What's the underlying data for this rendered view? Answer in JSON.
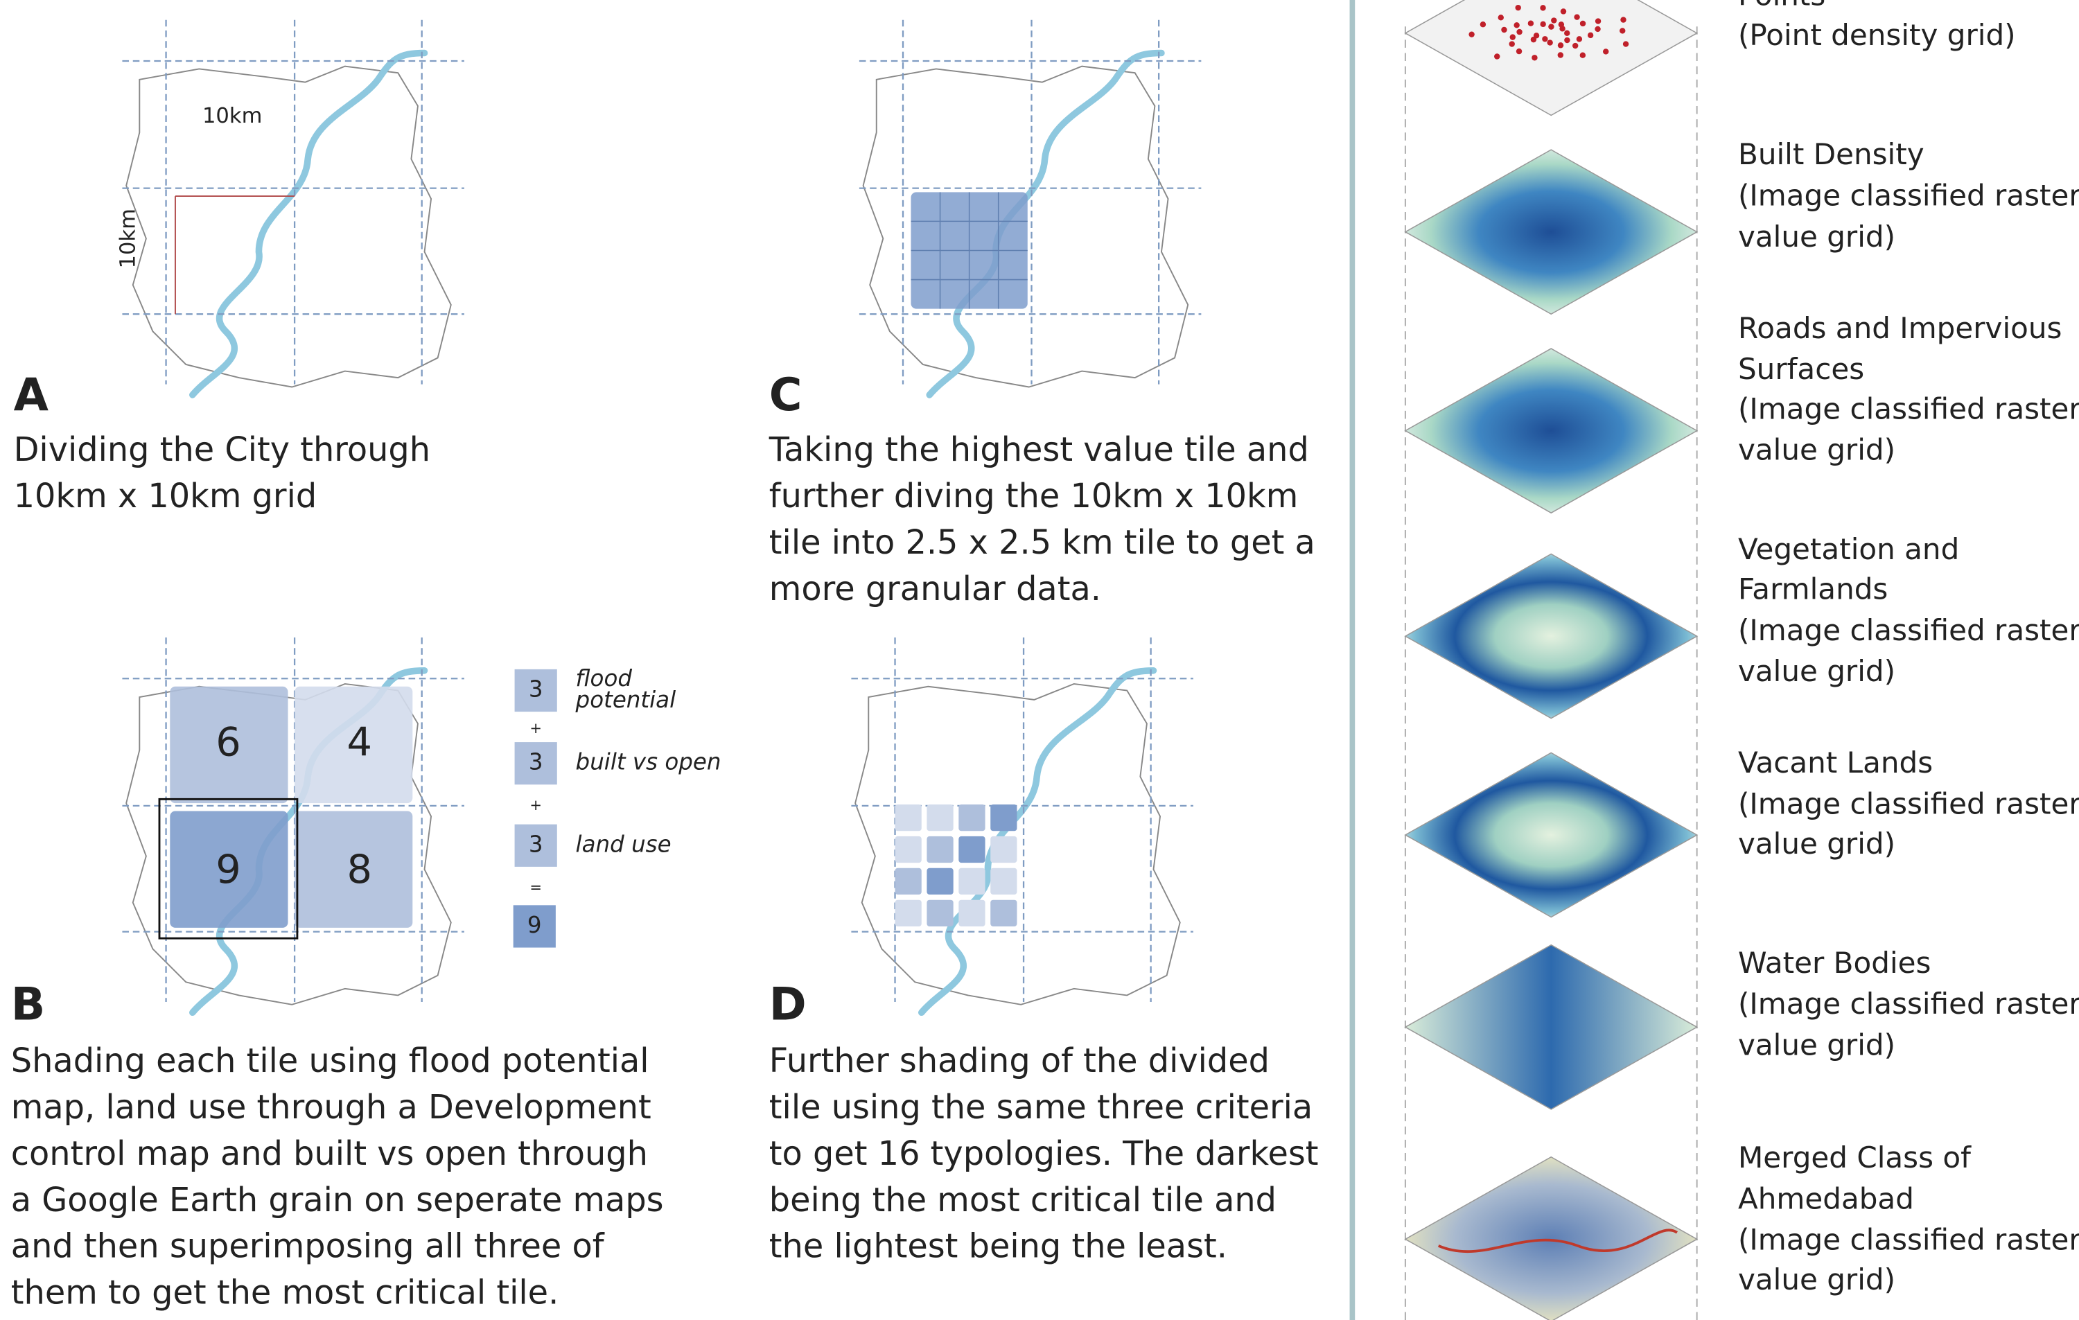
{
  "panels": [
    {
      "letter": "A",
      "caption": [
        "Dividing the City through",
        "10km x 10km grid"
      ],
      "dimension_labels": [
        "10km",
        "10km"
      ]
    },
    {
      "letter": "C",
      "caption": [
        "Taking the highest value tile and",
        "further diving the 10km x 10km",
        "tile into 2.5 x 2.5 km tile to get a",
        "more granular data."
      ]
    },
    {
      "letter": "B",
      "caption": [
        "Shading each tile using flood potential",
        "map, land use through a Development",
        "control map and built vs open through",
        "a Google Earth grain on seperate maps",
        "and then superimposing all three of",
        "them to get the most critical tile."
      ],
      "tiles": [
        6,
        4,
        9,
        8
      ]
    },
    {
      "letter": "D",
      "caption": [
        "Further shading of the divided",
        "tile using the same three criteria",
        "to get 16 typologies. The darkest",
        "being the most critical tile and",
        "the lightest being the least."
      ]
    }
  ],
  "legend": {
    "items": [
      {
        "value": 3,
        "label": [
          "flood",
          "potential"
        ]
      },
      {
        "value": 3,
        "label": [
          "built vs open"
        ]
      },
      {
        "value": 3,
        "label": [
          "land use"
        ]
      }
    ],
    "operators": [
      "+",
      "+",
      "="
    ],
    "result": 9
  },
  "layers": [
    {
      "lines": [
        "Points",
        "(Point density grid)"
      ]
    },
    {
      "lines": [
        "Built Density",
        "(Image classified raster",
        "value grid)"
      ]
    },
    {
      "lines": [
        "Roads and Impervious",
        "Surfaces",
        "(Image classified raster",
        "value grid)"
      ]
    },
    {
      "lines": [
        "Vegetation and",
        "Farmlands",
        "(Image classified raster",
        "value grid)"
      ]
    },
    {
      "lines": [
        "Vacant Lands",
        "(Image classified raster",
        "value grid)"
      ]
    },
    {
      "lines": [
        "Water Bodies",
        "(Image classified raster",
        "value grid)"
      ]
    },
    {
      "lines": [
        "Merged Class of",
        "Ahmedabad",
        "(Image classified raster",
        "value grid)"
      ]
    }
  ]
}
